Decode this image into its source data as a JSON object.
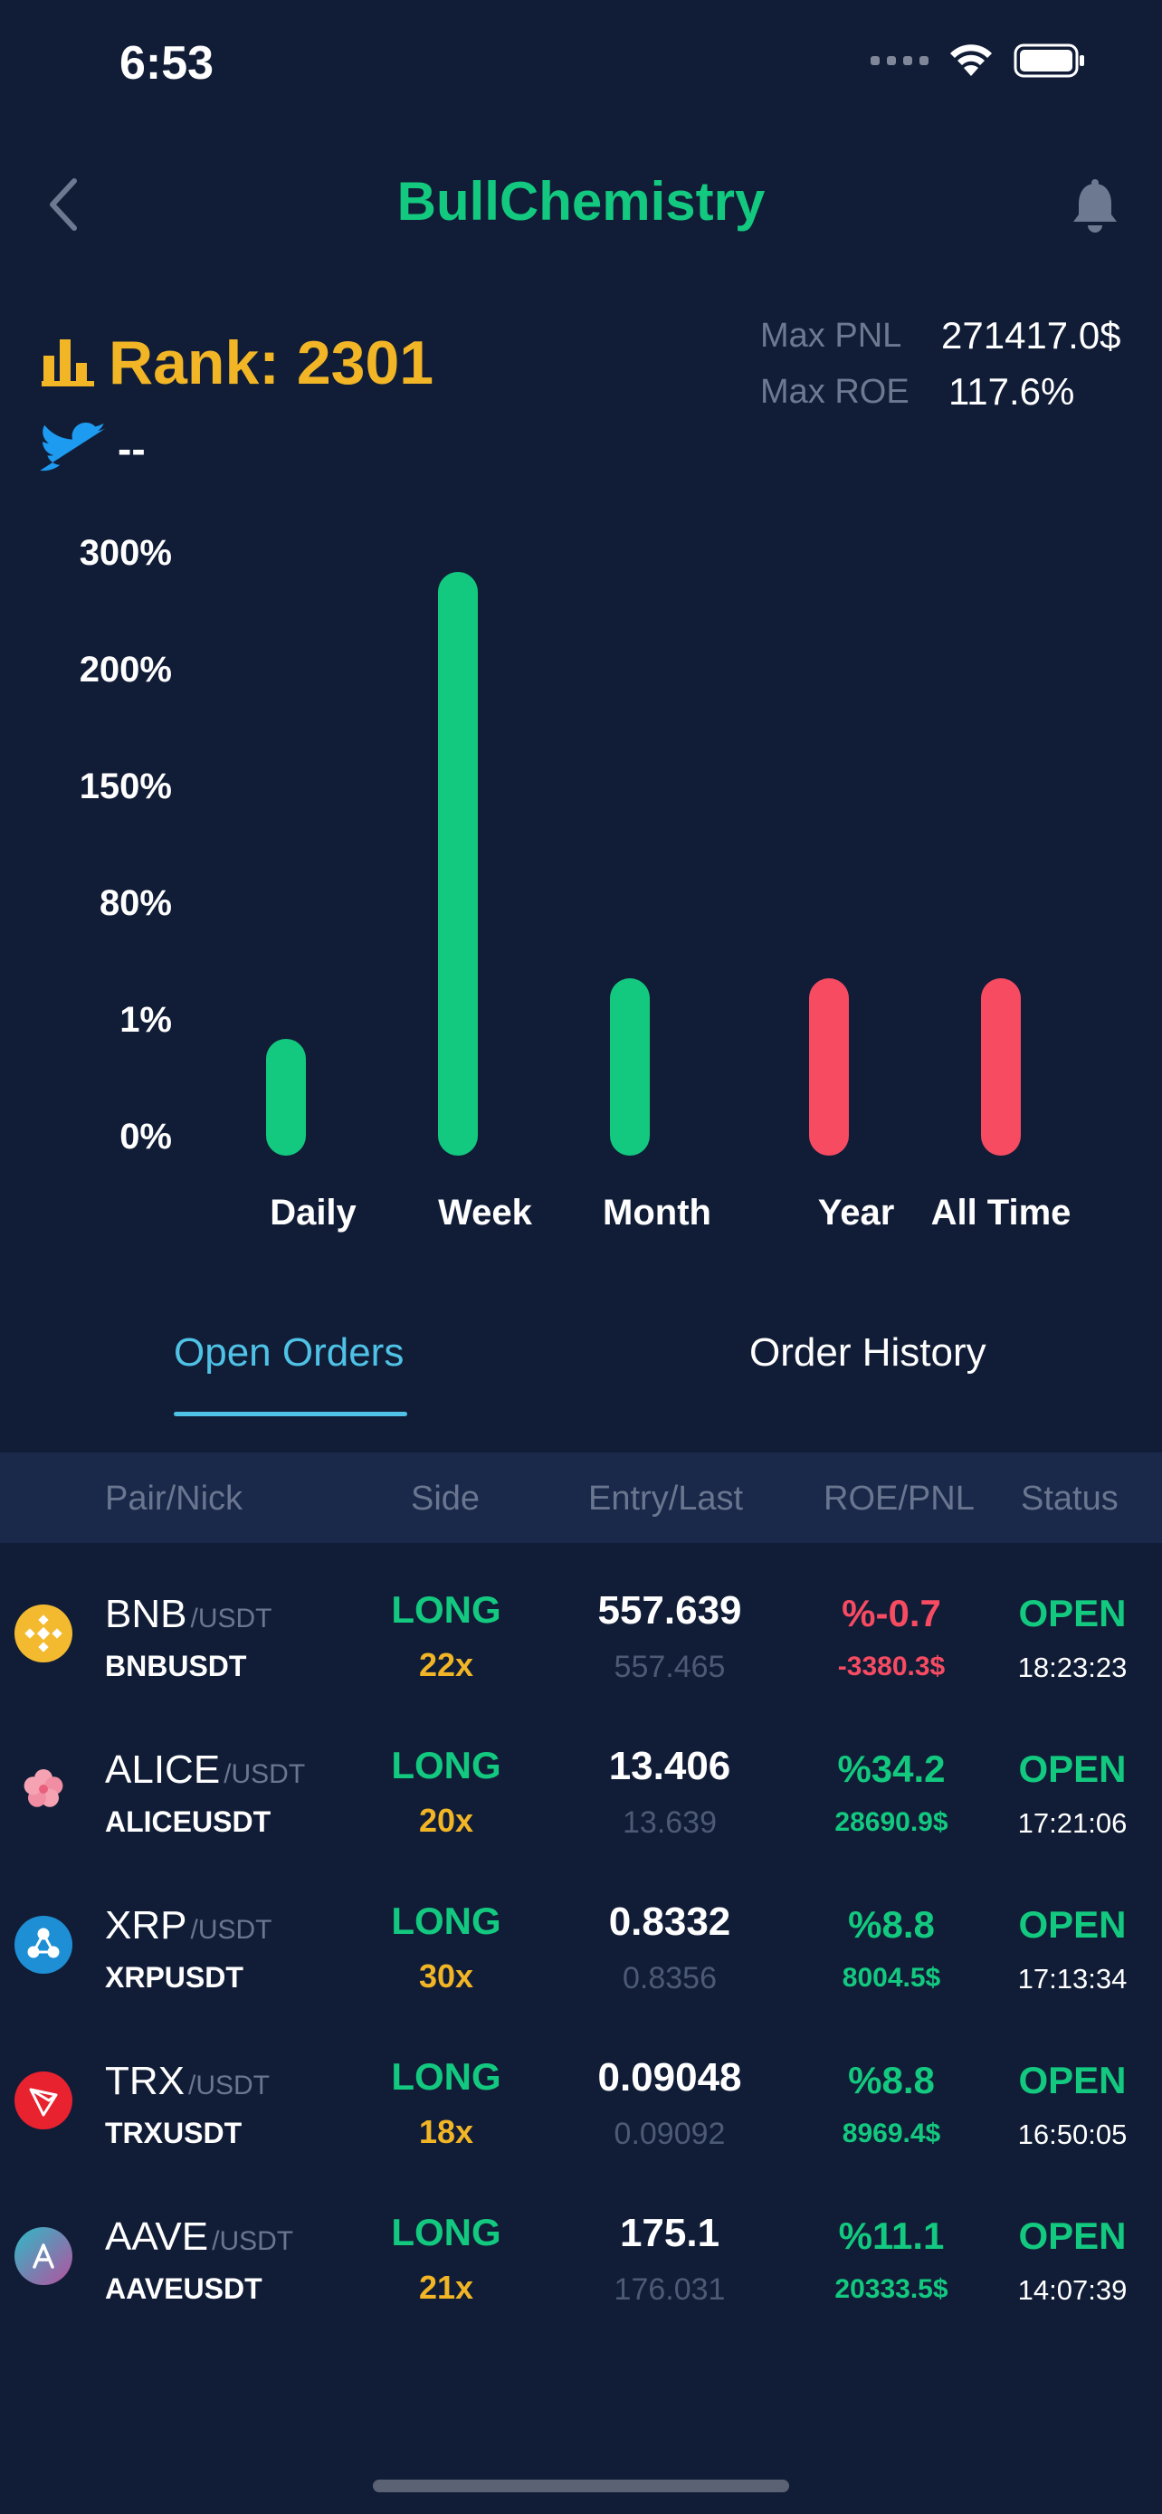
{
  "status_bar": {
    "time": "6:53"
  },
  "nav": {
    "title": "BullChemistry"
  },
  "profile": {
    "rank_label": "Rank: 2301",
    "twitter_value": "--",
    "max_pnl_label": "Max PNL",
    "max_pnl_value": "271417.0$",
    "max_roe_label": "Max ROE",
    "max_roe_value": "117.6%"
  },
  "colors": {
    "accent_green": "#13c97f",
    "accent_red": "#f74b62",
    "accent_gold": "#f1b526",
    "tab_active": "#4fc2e6",
    "background": "#111d37"
  },
  "chart_data": {
    "type": "bar",
    "title": "",
    "xlabel": "",
    "ylabel": "",
    "y_tick_labels": [
      "300%",
      "200%",
      "150%",
      "80%",
      "1%",
      "0%"
    ],
    "y_scale": "non-linear (evenly spaced tick labels)",
    "categories": [
      "Daily",
      "Week",
      "Month",
      "Year",
      "All Time"
    ],
    "values": [
      1,
      300,
      42,
      -42,
      -42
    ],
    "bar_colors": [
      "#13c97f",
      "#13c97f",
      "#13c97f",
      "#f74b62",
      "#f74b62"
    ],
    "legend": "none",
    "grid": false
  },
  "tabs": [
    {
      "label": "Open Orders",
      "active": true
    },
    {
      "label": "Order History",
      "active": false
    }
  ],
  "table": {
    "headers": [
      "Pair/Nick",
      "Side",
      "Entry/Last",
      "ROE/PNL",
      "Status"
    ],
    "rows": [
      {
        "icon": "bnb-coin-icon",
        "base": "BNB",
        "quote": "/USDT",
        "nick": "BNBUSDT",
        "side": "LONG",
        "leverage": "22x",
        "entry": "557.639",
        "last": "557.465",
        "roe": "%-0.7",
        "pnl": "-3380.3$",
        "positive": false,
        "status": "OPEN",
        "time": "18:23:23"
      },
      {
        "icon": "alice-coin-icon",
        "base": "ALICE",
        "quote": "/USDT",
        "nick": "ALICEUSDT",
        "side": "LONG",
        "leverage": "20x",
        "entry": "13.406",
        "last": "13.639",
        "roe": "%34.2",
        "pnl": "28690.9$",
        "positive": true,
        "status": "OPEN",
        "time": "17:21:06"
      },
      {
        "icon": "xrp-coin-icon",
        "base": "XRP",
        "quote": "/USDT",
        "nick": "XRPUSDT",
        "side": "LONG",
        "leverage": "30x",
        "entry": "0.8332",
        "last": "0.8356",
        "roe": "%8.8",
        "pnl": "8004.5$",
        "positive": true,
        "status": "OPEN",
        "time": "17:13:34"
      },
      {
        "icon": "trx-coin-icon",
        "base": "TRX",
        "quote": "/USDT",
        "nick": "TRXUSDT",
        "side": "LONG",
        "leverage": "18x",
        "entry": "0.09048",
        "last": "0.09092",
        "roe": "%8.8",
        "pnl": "8969.4$",
        "positive": true,
        "status": "OPEN",
        "time": "16:50:05"
      },
      {
        "icon": "aave-coin-icon",
        "base": "AAVE",
        "quote": "/USDT",
        "nick": "AAVEUSDT",
        "side": "LONG",
        "leverage": "21x",
        "entry": "175.1",
        "last": "176.031",
        "roe": "%11.1",
        "pnl": "20333.5$",
        "positive": true,
        "status": "OPEN",
        "time": "14:07:39"
      }
    ]
  }
}
